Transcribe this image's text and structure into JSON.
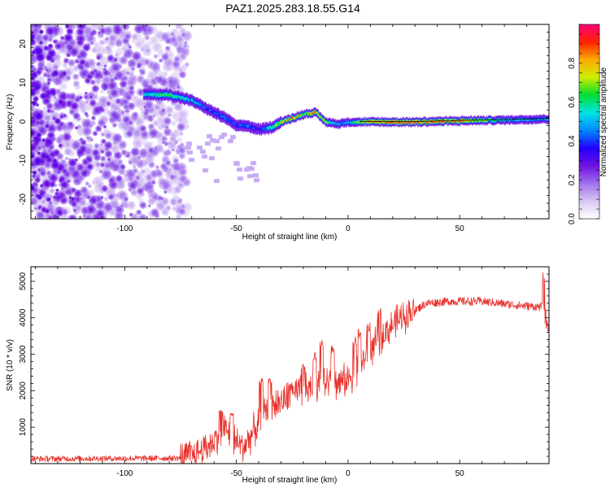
{
  "title": "PAZ1.2025.283.18.55.G14",
  "chart_data": [
    {
      "type": "heatmap",
      "title": "PAZ1.2025.283.18.55.G14",
      "xlabel": "Height of straight line (km)",
      "ylabel": "Frequency (Hz)",
      "xlim": [
        -142,
        90
      ],
      "ylim": [
        -25,
        25
      ],
      "x_ticks": [
        -100,
        -50,
        0,
        50
      ],
      "y_ticks": [
        -20,
        -10,
        0,
        10,
        20
      ],
      "colorbar": {
        "label": "Normalized spectral amplitude",
        "range": [
          0,
          1
        ],
        "ticks": [
          "0.0",
          "0.2",
          "0.4",
          "0.6",
          "0.8"
        ],
        "tick_values": [
          0.0,
          0.2,
          0.4,
          0.6,
          0.8
        ],
        "stops": [
          "#ffffff",
          "#d9c7f5",
          "#a070ee",
          "#7010e0",
          "#2200ff",
          "#0088ff",
          "#00e5e5",
          "#00dd33",
          "#ccee00",
          "#ffaa00",
          "#ff2200",
          "#ff0077"
        ]
      },
      "ridge": {
        "x": [
          -90,
          -80,
          -70,
          -62,
          -55,
          -50,
          -45,
          -40,
          -35,
          -30,
          -25,
          -20,
          -15,
          -10,
          -5,
          0,
          10,
          30,
          50,
          70,
          90
        ],
        "freq": [
          7,
          7,
          5.5,
          3,
          1,
          -1,
          -1,
          -2,
          -1.5,
          0,
          1,
          2,
          2.5,
          0,
          -0.5,
          0,
          0,
          0,
          0.3,
          0.5,
          0.8
        ],
        "amplitude": [
          0.55,
          0.65,
          0.5,
          0.4,
          0.45,
          0.4,
          0.45,
          0.35,
          0.6,
          0.75,
          0.85,
          0.7,
          0.85,
          0.7,
          0.5,
          0.5,
          0.85,
          0.92,
          0.85,
          0.55,
          0.5
        ]
      },
      "noise_region_x": [
        -142,
        -72
      ],
      "noise_amplitude": [
        0.05,
        0.35
      ]
    },
    {
      "type": "line",
      "title": "",
      "xlabel": "Height of straight line (km)",
      "ylabel": "SNR (10 * v/v)",
      "xlim": [
        -142,
        90
      ],
      "ylim": [
        0,
        5400
      ],
      "x_ticks": [
        -100,
        -50,
        0,
        50
      ],
      "y_ticks": [
        1000,
        2000,
        3000,
        4000,
        5000
      ],
      "color": "#e8302a",
      "trend": {
        "x": [
          -142,
          -75,
          -68,
          -60,
          -56,
          -52,
          -47,
          -42,
          -37,
          -30,
          -22,
          -15,
          -10,
          -5,
          0,
          5,
          10,
          15,
          20,
          25,
          30,
          35,
          45,
          60,
          75,
          85,
          90
        ],
        "snr": [
          130,
          150,
          280,
          600,
          1000,
          700,
          450,
          900,
          1500,
          1700,
          1950,
          2100,
          2200,
          2200,
          2300,
          2700,
          3100,
          3500,
          3800,
          4050,
          4200,
          4400,
          4450,
          4450,
          4350,
          4300,
          4300
        ]
      },
      "spikes": [
        {
          "x": -57,
          "snr": 1500
        },
        {
          "x": -52,
          "snr": 1400
        },
        {
          "x": -39,
          "snr": 2350
        },
        {
          "x": -35,
          "snr": 2350
        },
        {
          "x": -26,
          "snr": 2250
        },
        {
          "x": -20,
          "snr": 2750
        },
        {
          "x": -15,
          "snr": 3050
        },
        {
          "x": -12,
          "snr": 3400
        },
        {
          "x": -7,
          "snr": 3250
        },
        {
          "x": 3,
          "snr": 3500
        },
        {
          "x": 5,
          "snr": 3700
        },
        {
          "x": 9,
          "snr": 3950
        },
        {
          "x": 14,
          "snr": 4300
        },
        {
          "x": 88,
          "snr": 5300
        },
        {
          "x": 89,
          "snr": 3950
        }
      ]
    }
  ]
}
